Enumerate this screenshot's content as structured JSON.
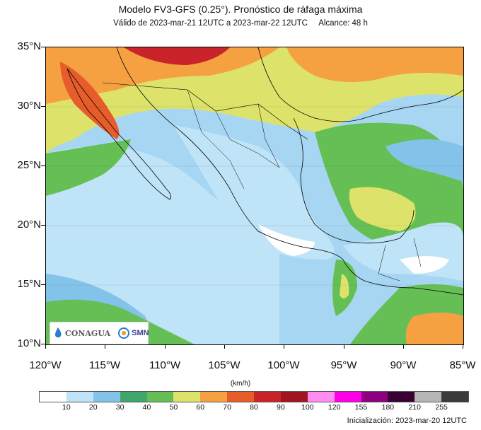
{
  "header": {
    "title": "Modelo FV3-GFS (0.25°). Pronóstico de ráfaga máxima",
    "valid": "Válido de 2023-mar-21 12UTC a 2023-mar-22 12UTC",
    "range": "Alcance: 48 h"
  },
  "axes": {
    "lat_labels": [
      "35°N",
      "30°N",
      "25°N",
      "20°N",
      "15°N",
      "10°N"
    ],
    "lon_labels": [
      "120°W",
      "115°W",
      "110°W",
      "105°W",
      "100°W",
      "95°W",
      "90°W",
      "85°W"
    ]
  },
  "logos": {
    "conagua": "CONAGUA",
    "smn": "SMN"
  },
  "colorbar": {
    "units": "(km/h)",
    "labels": [
      "10",
      "20",
      "30",
      "40",
      "50",
      "60",
      "70",
      "80",
      "90",
      "100",
      "120",
      "155",
      "180",
      "210",
      "255"
    ],
    "colors": [
      "#ffffff",
      "#bfe3f7",
      "#83c3ea",
      "#41a66b",
      "#66bf55",
      "#dde36a",
      "#f5a142",
      "#e75c2b",
      "#c8242a",
      "#a11520",
      "#ff8cf0",
      "#ff00e6",
      "#8c007f",
      "#3a0033",
      "#b5b5b5",
      "#3a3a3a"
    ]
  },
  "footer": {
    "init": "Inicialización: 2023-mar-20 12UTC"
  }
}
